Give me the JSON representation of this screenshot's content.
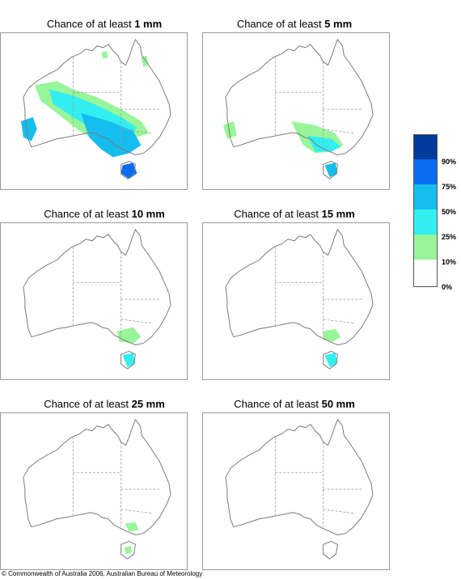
{
  "panels": [
    {
      "prefix": "Chance of at least ",
      "amount": "1 mm"
    },
    {
      "prefix": "Chance of at least ",
      "amount": "5 mm"
    },
    {
      "prefix": "Chance of at least ",
      "amount": "10 mm"
    },
    {
      "prefix": "Chance of at least ",
      "amount": "15 mm"
    },
    {
      "prefix": "Chance of at least ",
      "amount": "25 mm"
    },
    {
      "prefix": "Chance of at least ",
      "amount": "50 mm"
    }
  ],
  "legend": {
    "labels": [
      "90%",
      "75%",
      "50%",
      "25%",
      "10%",
      "0%"
    ],
    "colors": [
      "#003a9a",
      "#0a6cf0",
      "#15bdee",
      "#33eef0",
      "#98f59a",
      "#ffffff"
    ]
  },
  "copyright": "© Commonwealth of Australia 2006, Australian Bureau of Meteorology"
}
